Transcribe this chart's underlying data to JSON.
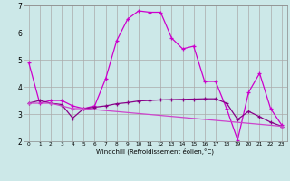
{
  "xlabel": "Windchill (Refroidissement éolien,°C)",
  "background_color": "#cce8e8",
  "grid_color": "#aaaaaa",
  "xlim": [
    -0.5,
    23.5
  ],
  "ylim": [
    2,
    7
  ],
  "yticks": [
    2,
    3,
    4,
    5,
    6,
    7
  ],
  "xticks": [
    0,
    1,
    2,
    3,
    4,
    5,
    6,
    7,
    8,
    9,
    10,
    11,
    12,
    13,
    14,
    15,
    16,
    17,
    18,
    19,
    20,
    21,
    22,
    23
  ],
  "line1_x": [
    0,
    1,
    2,
    3,
    4,
    5,
    6,
    7,
    8,
    9,
    10,
    11,
    12,
    13,
    14,
    15,
    16,
    17,
    18,
    19,
    20,
    21,
    22,
    23
  ],
  "line1_y": [
    4.9,
    3.4,
    3.5,
    3.5,
    3.3,
    3.2,
    3.3,
    4.3,
    5.7,
    6.5,
    6.8,
    6.75,
    6.75,
    5.8,
    5.4,
    5.5,
    4.2,
    4.2,
    3.2,
    2.05,
    3.8,
    4.5,
    3.2,
    2.6
  ],
  "line2_x": [
    0,
    1,
    2,
    3,
    4,
    5,
    6,
    7,
    8,
    9,
    10,
    11,
    12,
    13,
    14,
    15,
    16,
    17,
    18,
    19,
    20,
    21,
    22,
    23
  ],
  "line2_y": [
    3.4,
    3.5,
    3.4,
    3.35,
    2.85,
    3.2,
    3.25,
    3.3,
    3.38,
    3.42,
    3.48,
    3.5,
    3.52,
    3.53,
    3.54,
    3.55,
    3.56,
    3.56,
    3.4,
    2.8,
    3.1,
    2.9,
    2.7,
    2.55
  ],
  "line3_x": [
    0,
    2,
    4,
    5,
    23
  ],
  "line3_y": [
    3.4,
    3.4,
    3.2,
    3.2,
    2.55
  ],
  "line1_color": "#cc00cc",
  "line2_color": "#880088",
  "line3_color": "#cc44cc",
  "marker": "+"
}
